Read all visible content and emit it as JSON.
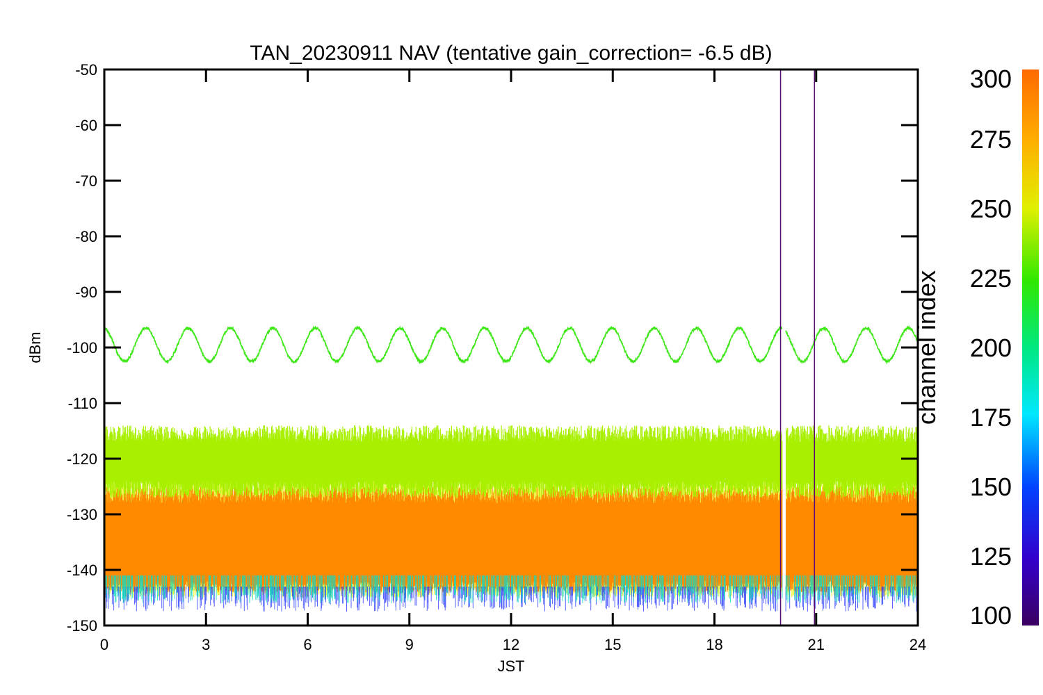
{
  "chart_data": {
    "type": "line",
    "title": "TAN_20230911 NAV (tentative gain_correction= -6.5 dB)",
    "xlabel": "JST",
    "ylabel": "dBm",
    "xlim": [
      0,
      24
    ],
    "ylim": [
      -150,
      -50
    ],
    "xticks": [
      0,
      3,
      6,
      9,
      12,
      15,
      18,
      21,
      24
    ],
    "yticks": [
      -50,
      -60,
      -70,
      -80,
      -90,
      -100,
      -110,
      -120,
      -130,
      -140,
      -150
    ],
    "colorbar": {
      "label": "channel index",
      "range": [
        100,
        300
      ],
      "ticks": [
        300,
        275,
        250,
        225,
        200,
        175,
        150,
        125,
        100
      ]
    },
    "series": [
      {
        "channel_index": 240,
        "color": "#3ee817",
        "description_value": "sinusoidal signal ~ -99.5 dBm mean, ±3 dB amplitude, ~1.3 h period",
        "mean": -99.5,
        "amplitude": 3.0,
        "period_hours": 1.25
      },
      {
        "channel_index": 262,
        "color": "#a8f000",
        "mean": -119.5,
        "spread": [
          -127,
          -114
        ]
      },
      {
        "channel_index": 290,
        "color": "#ff8a00",
        "mean": -135,
        "spread": [
          -145,
          -125
        ]
      }
    ],
    "gaps": [
      {
        "x_start": 20.0,
        "x_end": 20.1
      }
    ],
    "vertical_markers": [
      {
        "x": 19.95,
        "color": "#5a0a6e"
      },
      {
        "x": 20.95,
        "color": "#5a0a6e"
      }
    ]
  }
}
